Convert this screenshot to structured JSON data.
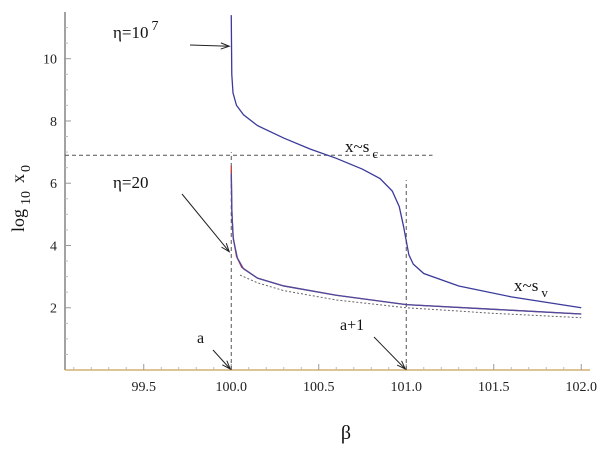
{
  "chart_data": {
    "type": "line",
    "title": "",
    "xlabel": "β",
    "ylabel": {
      "base": "log",
      "subscript": "10",
      "variable": "x",
      "variable_subscript": "0"
    },
    "xlim": [
      99.05,
      102.05
    ],
    "ylim": [
      0,
      11.5
    ],
    "x_ticks": [
      99.5,
      100.0,
      100.5,
      101.0,
      101.5,
      102.0
    ],
    "y_ticks": [
      2,
      4,
      6,
      8,
      10
    ],
    "grid": false,
    "series": [
      {
        "role": "eta-1e7-curve",
        "color": "#3a3a9a",
        "points": [
          [
            100.0,
            11.4
          ],
          [
            100.003,
            9.5
          ],
          [
            100.01,
            8.9
          ],
          [
            100.03,
            8.5
          ],
          [
            100.07,
            8.2
          ],
          [
            100.15,
            7.85
          ],
          [
            100.3,
            7.45
          ],
          [
            100.45,
            7.1
          ],
          [
            100.6,
            6.8
          ],
          [
            100.75,
            6.45
          ],
          [
            100.85,
            6.15
          ],
          [
            100.92,
            5.75
          ],
          [
            100.96,
            5.25
          ],
          [
            100.985,
            4.6
          ],
          [
            101.0,
            4.15
          ],
          [
            101.015,
            3.7
          ],
          [
            101.04,
            3.4
          ],
          [
            101.1,
            3.1
          ],
          [
            101.3,
            2.7
          ],
          [
            101.6,
            2.35
          ],
          [
            102.0,
            2.0
          ]
        ]
      },
      {
        "role": "eta-20-curve",
        "color": "#c03a3a",
        "points": [
          [
            100.0,
            6.55
          ],
          [
            100.003,
            5.2
          ],
          [
            100.01,
            4.3
          ],
          [
            100.03,
            3.65
          ],
          [
            100.06,
            3.3
          ],
          [
            100.15,
            2.95
          ],
          [
            100.3,
            2.7
          ],
          [
            100.6,
            2.4
          ],
          [
            101.0,
            2.1
          ],
          [
            101.5,
            1.95
          ],
          [
            102.0,
            1.8
          ]
        ]
      },
      {
        "role": "eta-20-blue-curve",
        "color": "#4a4aa0",
        "points": [
          [
            100.0,
            6.3
          ],
          [
            100.004,
            5.0
          ],
          [
            100.012,
            4.2
          ],
          [
            100.035,
            3.6
          ],
          [
            100.07,
            3.25
          ],
          [
            100.15,
            2.95
          ],
          [
            100.3,
            2.7
          ],
          [
            100.6,
            2.4
          ],
          [
            101.0,
            2.1
          ],
          [
            101.5,
            1.95
          ],
          [
            102.0,
            1.8
          ]
        ]
      },
      {
        "role": "approximation-dotted",
        "color": "#666666",
        "dashed": true,
        "points": [
          [
            100.05,
            3.05
          ],
          [
            100.15,
            2.8
          ],
          [
            100.3,
            2.55
          ],
          [
            100.6,
            2.25
          ],
          [
            101.0,
            2.0
          ],
          [
            101.5,
            1.82
          ],
          [
            102.0,
            1.68
          ]
        ]
      }
    ],
    "reference_lines": [
      {
        "role": "horizontal-sc",
        "from": [
          99.05,
          6.9
        ],
        "to": [
          101.15,
          6.9
        ]
      },
      {
        "role": "vertical-a",
        "from": [
          100.0,
          0
        ],
        "to": [
          100.0,
          7.0
        ]
      },
      {
        "role": "vertical-a-plus-1",
        "from": [
          101.0,
          0
        ],
        "to": [
          101.0,
          6.1
        ]
      }
    ],
    "annotations": {
      "eta_high": {
        "base": "η=10",
        "exponent": "7"
      },
      "eta_low": "η=20",
      "sc": {
        "text": "x~s",
        "sub": "c"
      },
      "sv": {
        "text": "x~s",
        "sub": "v"
      },
      "a": "a",
      "a_plus_1": "a+1"
    },
    "colors": {
      "axis": "#d4b070",
      "frame": "#444444",
      "curve_blue": "#3a3a9a",
      "curve_red": "#c03a3a",
      "dashed": "#555555"
    }
  }
}
